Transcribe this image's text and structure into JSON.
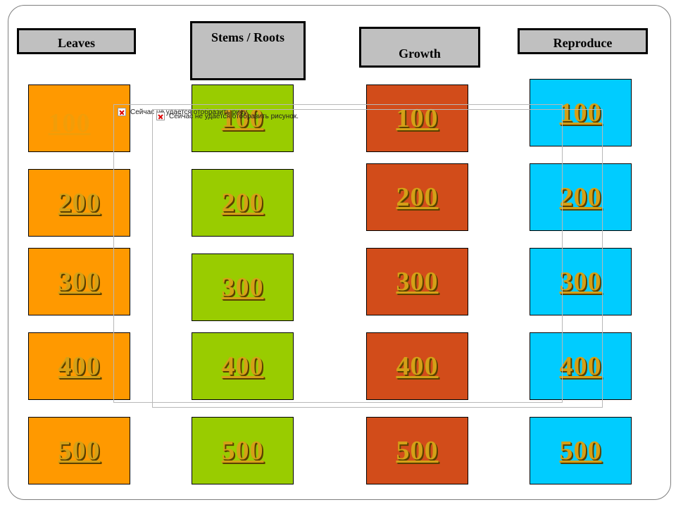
{
  "categories": [
    {
      "label": "Leaves",
      "color": "#ff9900"
    },
    {
      "label": "Stems / Roots",
      "color": "#99cc00"
    },
    {
      "label": "Growth",
      "color": "#d24c1a"
    },
    {
      "label": "Reproduce",
      "color": "#00ccff"
    }
  ],
  "point_values": [
    "100",
    "200",
    "300",
    "400",
    "500"
  ],
  "broken_image": {
    "message": "Сейчас не удается отобразить рисунок.",
    "message_cut": "Сейчас не удается отобразить рисунок."
  }
}
